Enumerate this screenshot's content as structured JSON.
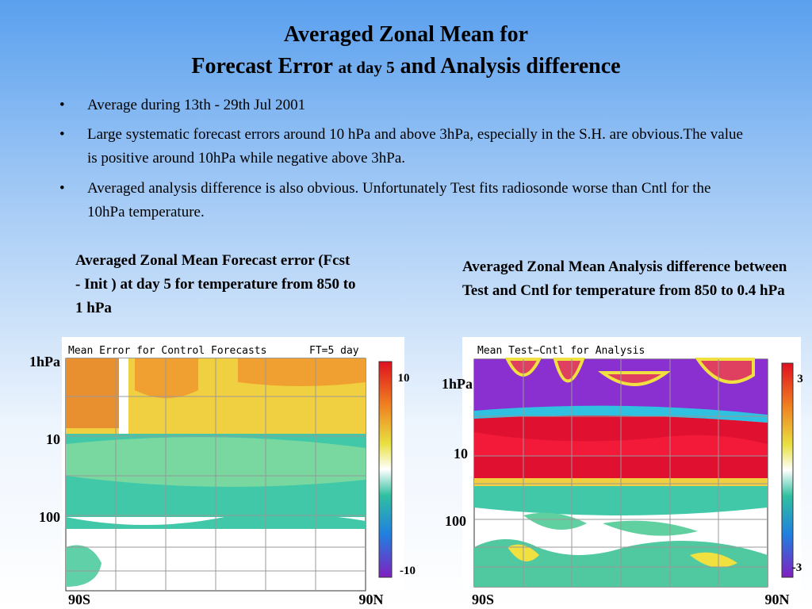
{
  "title": {
    "line1": "Averaged Zonal Mean for",
    "line2_main": "Forecast Error",
    "line2_small": "at day 5",
    "line2_end": "and Analysis difference"
  },
  "bullets": [
    "Average during 13th - 29th Jul 2001",
    "Large systematic forecast errors around 10 hPa and above 3hPa, especially in the S.H. are obvious.The value is positive around 10hPa while negative above 3hPa.",
    "Averaged analysis difference is also obvious. Unfortunately Test fits radiosonde worse than Cntl for the 10hPa temperature."
  ],
  "panels": [
    {
      "caption": "Averaged Zonal Mean Forecast error (Fcst - Init ) at day 5 for temperature from 850 to 1 hPa",
      "plot_title": "Mean Error for Control Forecasts",
      "plot_subtitle": "FT=5 day",
      "y_labels": [
        "1hPa",
        "10",
        "100"
      ],
      "x_labels": [
        "90S",
        "90N"
      ],
      "colorbar_labels": [
        "10",
        "-10"
      ]
    },
    {
      "caption": "Averaged Zonal Mean Analysis difference between Test and Cntl for temperature from 850 to 0.4 hPa",
      "plot_title": "Mean Test−Cntl for Analysis",
      "y_labels": [
        "1hPa",
        "10",
        "100"
      ],
      "x_labels": [
        "90S",
        "90N"
      ],
      "colorbar_labels": [
        "3",
        "-3"
      ]
    }
  ]
}
